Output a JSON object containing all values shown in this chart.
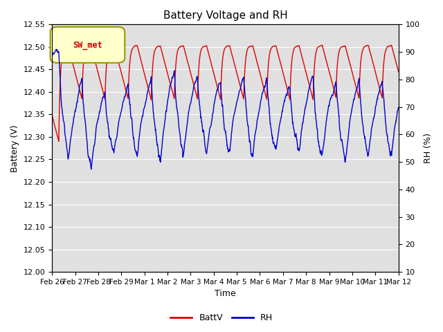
{
  "title": "Battery Voltage and RH",
  "xlabel": "Time",
  "ylabel_left": "Battery (V)",
  "ylabel_right": "RH (%)",
  "legend_label": "SW_met",
  "series": [
    "BattV",
    "RH"
  ],
  "colors": [
    "#dd0000",
    "#0000cc"
  ],
  "ylim_left": [
    12.0,
    12.55
  ],
  "ylim_right": [
    10,
    100
  ],
  "yticks_left": [
    12.0,
    12.05,
    12.1,
    12.15,
    12.2,
    12.25,
    12.3,
    12.35,
    12.4,
    12.45,
    12.5,
    12.55
  ],
  "yticks_right": [
    10,
    20,
    30,
    40,
    50,
    60,
    70,
    80,
    90,
    100
  ],
  "xtick_labels": [
    "Feb 26",
    "Feb 27",
    "Feb 28",
    "Feb 29",
    "Mar 1",
    "Mar 2",
    "Mar 3",
    "Mar 4",
    "Mar 5",
    "Mar 6",
    "Mar 7",
    "Mar 8",
    "Mar 9",
    "Mar 10",
    "Mar 11",
    "Mar 12"
  ],
  "background_color": "#ffffff",
  "plot_bg_color": "#e0e0e0",
  "grid_color": "#ffffff",
  "legend_box_color": "#ffffcc",
  "legend_box_edge": "#999900",
  "linewidth": 1.0,
  "title_fontsize": 11,
  "axis_fontsize": 9,
  "tick_fontsize": 8
}
